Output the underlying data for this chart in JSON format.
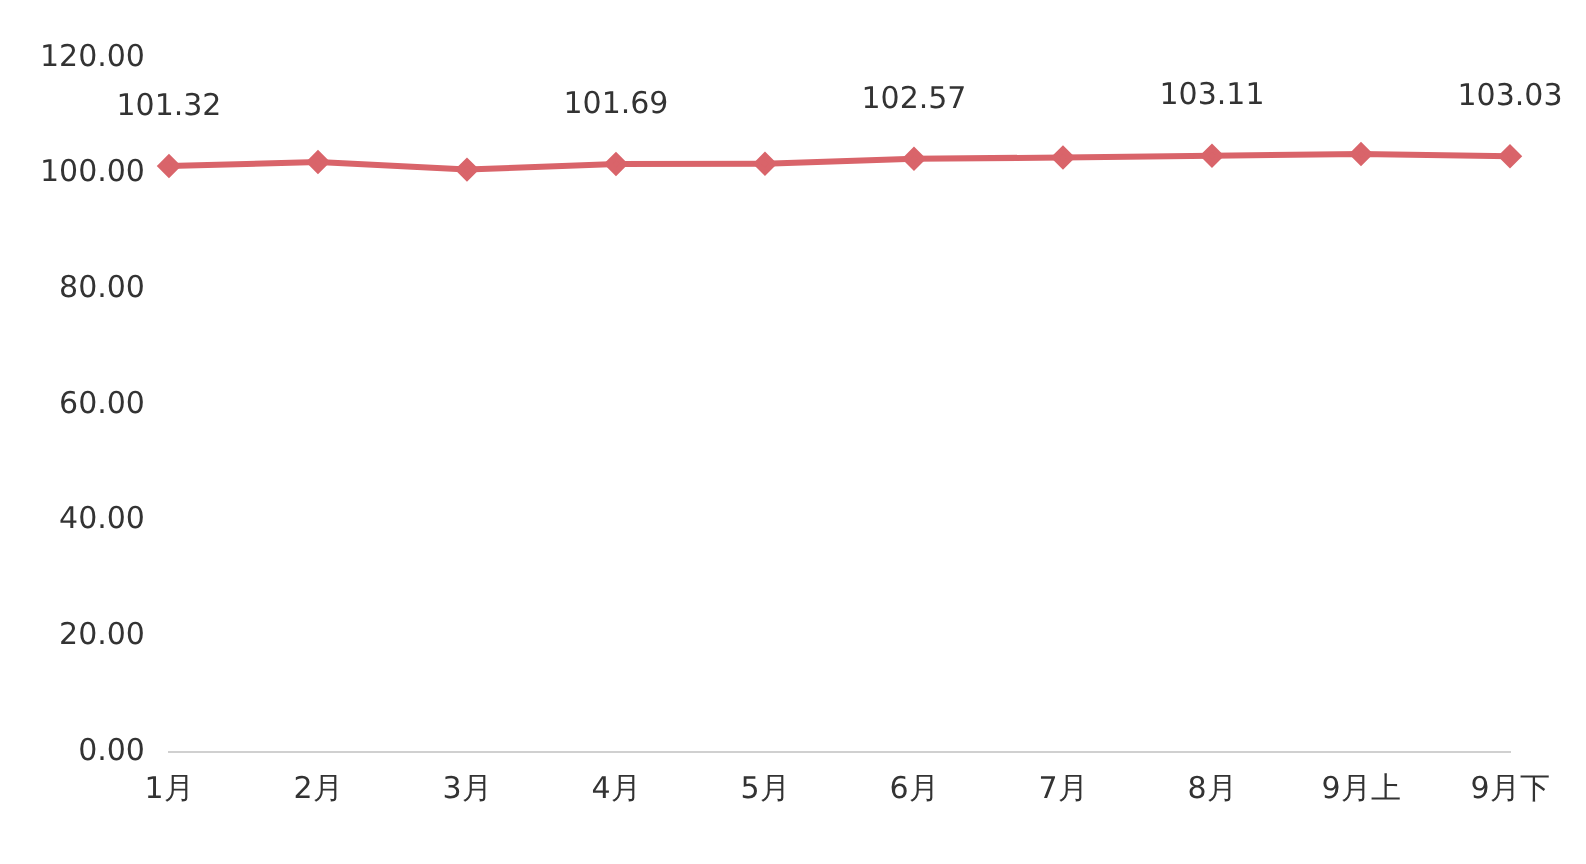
{
  "chart_data": {
    "type": "line",
    "categories": [
      "1月",
      "2月",
      "3月",
      "4月",
      "5月",
      "6月",
      "7月",
      "8月",
      "9月上",
      "9月下"
    ],
    "series": [
      {
        "color": "#d9646a",
        "values": [
          101.32,
          102.0,
          100.7,
          101.69,
          101.7,
          102.57,
          102.8,
          103.11,
          103.4,
          103.03
        ],
        "value_labels": [
          "101.32",
          null,
          null,
          "101.69",
          null,
          "102.57",
          null,
          "103.11",
          null,
          "103.03"
        ]
      }
    ],
    "ylim": [
      0,
      120
    ],
    "yticks": [
      {
        "value": 0,
        "label": "0.00"
      },
      {
        "value": 20,
        "label": "20.00"
      },
      {
        "value": 40,
        "label": "40.00"
      },
      {
        "value": 60,
        "label": "60.00"
      },
      {
        "value": 80,
        "label": "80.00"
      },
      {
        "value": 100,
        "label": "100.00"
      },
      {
        "value": 120,
        "label": "120.00"
      }
    ],
    "grid": false,
    "legend": false,
    "marker": "diamond",
    "line_style": "solid"
  }
}
